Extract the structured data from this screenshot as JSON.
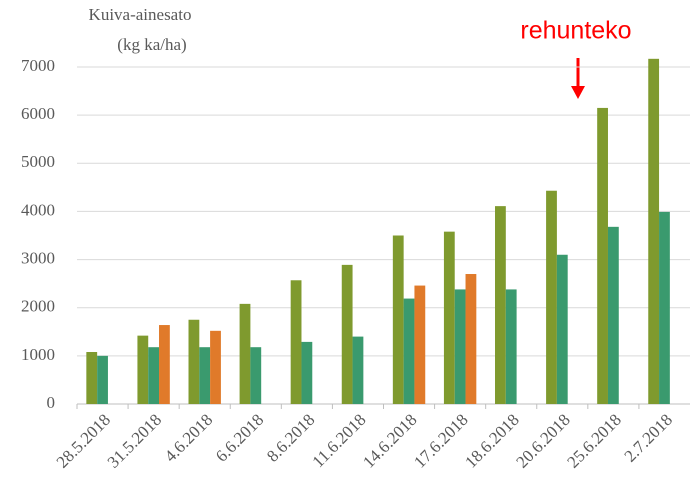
{
  "chart_data": {
    "type": "bar",
    "y_label_lines": [
      "Kuiva-ainesato",
      "(kg ka/ha)"
    ],
    "annotation": "rehunteko",
    "categories": [
      "28.5.2018",
      "31.5.2018",
      "4.6.2018",
      "6.6.2018",
      "8.6.2018",
      "11.6.2018",
      "14.6.2018",
      "17.6.2018",
      "18.6.2018",
      "20.6.2018",
      "25.6.2018",
      "2.7.2018"
    ],
    "series": [
      {
        "color": "#7f9a2e",
        "values": [
          1080,
          1420,
          1750,
          2080,
          2570,
          2890,
          3500,
          3580,
          4110,
          4430,
          6150,
          7170
        ]
      },
      {
        "color": "#3a9a6e",
        "values": [
          1000,
          1180,
          1180,
          1180,
          1290,
          1400,
          2190,
          2380,
          2380,
          3100,
          3680,
          3990
        ]
      },
      {
        "color": "#e07a2a",
        "values": [
          null,
          1640,
          1520,
          null,
          null,
          null,
          2460,
          2700,
          null,
          null,
          null,
          null
        ]
      }
    ],
    "ylim": [
      0,
      7000
    ],
    "yticks": [
      0,
      1000,
      2000,
      3000,
      4000,
      5000,
      6000,
      7000
    ],
    "grid": true
  }
}
